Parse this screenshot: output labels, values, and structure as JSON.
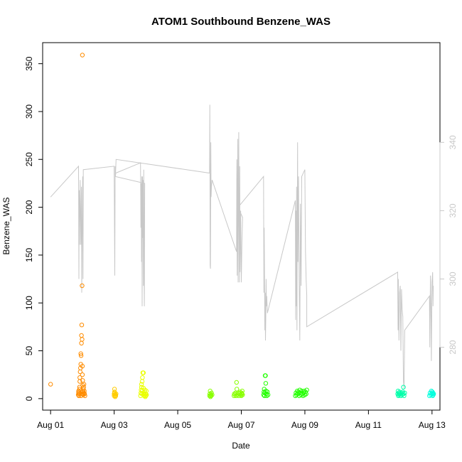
{
  "chart_data": {
    "type": "scatter",
    "title": "ATOM1 Southbound Benzene_WAS",
    "xlabel": "Date",
    "ylabel": "Benzene_WAS",
    "xlim": [
      -0.25,
      12.25
    ],
    "ylim": [
      -12,
      372
    ],
    "y2lim": [
      261.6,
      369.2
    ],
    "x_ticks": [
      {
        "x": 0,
        "label": "Aug 01"
      },
      {
        "x": 2,
        "label": "Aug 03"
      },
      {
        "x": 4,
        "label": "Aug 05"
      },
      {
        "x": 6,
        "label": "Aug 07"
      },
      {
        "x": 8,
        "label": "Aug 09"
      },
      {
        "x": 10,
        "label": "Aug 11"
      },
      {
        "x": 12,
        "label": "Aug 13"
      }
    ],
    "y_ticks": [
      0,
      50,
      100,
      150,
      200,
      250,
      300,
      350
    ],
    "y2_ticks": [
      280,
      300,
      320,
      340
    ],
    "point_series": [
      {
        "color": "#ff8c00",
        "points": [
          [
            0.0,
            15
          ],
          [
            0.87,
            4
          ],
          [
            0.88,
            6
          ],
          [
            0.88,
            8
          ],
          [
            0.89,
            3
          ],
          [
            0.9,
            5
          ],
          [
            0.9,
            7
          ],
          [
            0.91,
            10
          ],
          [
            0.91,
            12
          ],
          [
            0.92,
            18
          ],
          [
            0.92,
            22
          ],
          [
            0.93,
            28
          ],
          [
            0.94,
            32
          ],
          [
            0.95,
            36
          ],
          [
            0.96,
            45
          ],
          [
            0.97,
            58
          ],
          [
            0.97,
            66
          ],
          [
            0.98,
            77
          ],
          [
            0.99,
            118
          ],
          [
            0.95,
            47
          ],
          [
            0.99,
            62
          ],
          [
            1.0,
            34
          ],
          [
            1.0,
            25
          ],
          [
            1.01,
            14
          ],
          [
            1.01,
            19
          ],
          [
            1.02,
            8
          ],
          [
            1.02,
            5
          ],
          [
            1.03,
            10
          ],
          [
            1.03,
            4
          ],
          [
            1.04,
            6
          ],
          [
            0.96,
            3
          ],
          [
            0.98,
            5
          ],
          [
            1.0,
            7
          ],
          [
            1.04,
            12
          ],
          [
            1.05,
            15
          ],
          [
            1.06,
            8
          ],
          [
            1.07,
            5
          ],
          [
            1.08,
            3
          ],
          [
            1.0,
            359
          ]
        ]
      },
      {
        "color": "#ffcc00",
        "points": [
          [
            2.0,
            3
          ],
          [
            2.0,
            5
          ],
          [
            2.01,
            7
          ],
          [
            2.01,
            10
          ],
          [
            2.02,
            4
          ],
          [
            2.02,
            6
          ],
          [
            2.03,
            2
          ],
          [
            2.04,
            4
          ],
          [
            2.05,
            3
          ],
          [
            2.06,
            5
          ]
        ]
      },
      {
        "color": "#eaff00",
        "points": [
          [
            2.83,
            3
          ],
          [
            2.84,
            6
          ],
          [
            2.85,
            9
          ],
          [
            2.86,
            12
          ],
          [
            2.86,
            15
          ],
          [
            2.87,
            5
          ],
          [
            2.88,
            8
          ],
          [
            2.88,
            18
          ],
          [
            2.89,
            22
          ],
          [
            2.9,
            27
          ],
          [
            2.92,
            27
          ],
          [
            2.92,
            11
          ],
          [
            2.93,
            5
          ],
          [
            2.94,
            3
          ],
          [
            2.95,
            7
          ],
          [
            2.96,
            4
          ],
          [
            2.97,
            9
          ],
          [
            2.98,
            2
          ],
          [
            2.99,
            5
          ],
          [
            3.0,
            3
          ],
          [
            3.01,
            8
          ],
          [
            3.02,
            4
          ]
        ]
      },
      {
        "color": "#88ff00",
        "points": [
          [
            5.0,
            3
          ],
          [
            5.01,
            5
          ],
          [
            5.02,
            8
          ],
          [
            5.03,
            2
          ],
          [
            5.04,
            4
          ],
          [
            5.05,
            3
          ],
          [
            5.06,
            6
          ],
          [
            5.08,
            4
          ],
          [
            5.77,
            3
          ],
          [
            5.78,
            5
          ],
          [
            5.8,
            4
          ],
          [
            5.82,
            6
          ],
          [
            5.84,
            3
          ],
          [
            5.85,
            17
          ],
          [
            5.86,
            10
          ],
          [
            5.88,
            4
          ],
          [
            5.9,
            6
          ],
          [
            5.92,
            3
          ],
          [
            5.94,
            5
          ],
          [
            5.96,
            7
          ],
          [
            5.98,
            4
          ],
          [
            6.0,
            3
          ],
          [
            6.01,
            6
          ],
          [
            6.02,
            5
          ],
          [
            6.03,
            8
          ],
          [
            6.04,
            4
          ]
        ]
      },
      {
        "color": "#22ff00",
        "points": [
          [
            6.7,
            4
          ],
          [
            6.71,
            7
          ],
          [
            6.72,
            10
          ],
          [
            6.73,
            3
          ],
          [
            6.74,
            6
          ],
          [
            6.75,
            24
          ],
          [
            6.76,
            24
          ],
          [
            6.77,
            16
          ],
          [
            6.78,
            8
          ],
          [
            6.79,
            5
          ],
          [
            6.8,
            3
          ],
          [
            6.82,
            7
          ],
          [
            6.84,
            4
          ],
          [
            7.7,
            3
          ],
          [
            7.72,
            6
          ],
          [
            7.74,
            4
          ],
          [
            7.76,
            8
          ],
          [
            7.78,
            5
          ],
          [
            7.8,
            7
          ],
          [
            7.82,
            3
          ],
          [
            7.84,
            9
          ],
          [
            7.86,
            6
          ],
          [
            7.88,
            4
          ],
          [
            7.9,
            8
          ],
          [
            7.92,
            5
          ],
          [
            7.94,
            3
          ],
          [
            7.96,
            6
          ],
          [
            7.98,
            8
          ],
          [
            8.0,
            4
          ],
          [
            8.02,
            7
          ],
          [
            8.04,
            5
          ],
          [
            8.06,
            9
          ]
        ]
      },
      {
        "color": "#00ffaa",
        "points": [
          [
            10.92,
            5
          ],
          [
            10.93,
            8
          ],
          [
            10.94,
            3
          ],
          [
            10.95,
            6
          ],
          [
            10.96,
            4
          ],
          [
            10.98,
            7
          ],
          [
            11.0,
            5
          ],
          [
            11.02,
            3
          ],
          [
            11.04,
            6
          ],
          [
            11.06,
            4
          ],
          [
            11.08,
            7
          ],
          [
            11.1,
            5
          ],
          [
            11.12,
            3
          ],
          [
            11.14,
            6
          ],
          [
            11.1,
            12
          ]
        ]
      },
      {
        "color": "#00ffdd",
        "points": [
          [
            11.92,
            3
          ],
          [
            11.94,
            6
          ],
          [
            11.96,
            4
          ],
          [
            11.98,
            8
          ],
          [
            12.0,
            5
          ],
          [
            12.01,
            7
          ],
          [
            12.02,
            3
          ],
          [
            12.03,
            6
          ],
          [
            12.04,
            4
          ],
          [
            12.05,
            5
          ]
        ]
      }
    ],
    "line_series": {
      "color": "#c8c8c8",
      "axis": "right",
      "points": [
        [
          0.0,
          324
        ],
        [
          0.88,
          333
        ],
        [
          0.89,
          300
        ],
        [
          0.9,
          326
        ],
        [
          0.91,
          310
        ],
        [
          0.93,
          329
        ],
        [
          0.95,
          310
        ],
        [
          0.97,
          327
        ],
        [
          0.98,
          296
        ],
        [
          0.99,
          312
        ],
        [
          1.0,
          320
        ],
        [
          1.01,
          330
        ],
        [
          1.02,
          300
        ],
        [
          1.03,
          332
        ],
        [
          2.0,
          333
        ],
        [
          2.01,
          315
        ],
        [
          2.02,
          301
        ],
        [
          2.03,
          333
        ],
        [
          2.04,
          330
        ],
        [
          2.05,
          331
        ],
        [
          2.83,
          334
        ],
        [
          2.84,
          315
        ],
        [
          2.85,
          328
        ],
        [
          2.86,
          305
        ],
        [
          2.87,
          330
        ],
        [
          2.88,
          292
        ],
        [
          2.89,
          330
        ],
        [
          2.9,
          312
        ],
        [
          2.91,
          329
        ],
        [
          2.92,
          298
        ],
        [
          2.93,
          332
        ],
        [
          2.94,
          302
        ],
        [
          2.95,
          292
        ],
        [
          2.96,
          328
        ],
        [
          2.04,
          330
        ],
        [
          2.06,
          335
        ],
        [
          5.0,
          331
        ],
        [
          5.01,
          351
        ],
        [
          5.02,
          304
        ],
        [
          5.03,
          303
        ],
        [
          5.04,
          340
        ],
        [
          5.05,
          324
        ],
        [
          5.06,
          327
        ],
        [
          5.08,
          329
        ],
        [
          5.85,
          308
        ],
        [
          5.86,
          335
        ],
        [
          5.87,
          301
        ],
        [
          5.88,
          322
        ],
        [
          5.89,
          341
        ],
        [
          5.9,
          299
        ],
        [
          5.92,
          343
        ],
        [
          5.93,
          315
        ],
        [
          5.94,
          299
        ],
        [
          5.95,
          333
        ],
        [
          5.96,
          302
        ],
        [
          5.98,
          320
        ],
        [
          6.0,
          299
        ],
        [
          6.02,
          311
        ],
        [
          6.04,
          318
        ],
        [
          5.9,
          321
        ],
        [
          6.7,
          330
        ],
        [
          6.71,
          296
        ],
        [
          6.72,
          315
        ],
        [
          6.73,
          303
        ],
        [
          6.74,
          285
        ],
        [
          6.75,
          296
        ],
        [
          6.76,
          282
        ],
        [
          6.77,
          288
        ],
        [
          6.78,
          300
        ],
        [
          6.79,
          292
        ],
        [
          6.8,
          295
        ],
        [
          6.82,
          290
        ],
        [
          7.7,
          323
        ],
        [
          7.71,
          288
        ],
        [
          7.72,
          320
        ],
        [
          7.73,
          292
        ],
        [
          7.74,
          327
        ],
        [
          7.75,
          285
        ],
        [
          7.76,
          312
        ],
        [
          7.77,
          340
        ],
        [
          7.78,
          305
        ],
        [
          7.8,
          330
        ],
        [
          7.82,
          300
        ],
        [
          7.84,
          282
        ],
        [
          7.86,
          322
        ],
        [
          7.88,
          298
        ],
        [
          7.9,
          330
        ],
        [
          8.0,
          332
        ],
        [
          8.02,
          308
        ],
        [
          8.04,
          300
        ],
        [
          8.06,
          295
        ],
        [
          8.06,
          286
        ],
        [
          10.92,
          302
        ],
        [
          10.93,
          285
        ],
        [
          10.94,
          300
        ],
        [
          10.96,
          282
        ],
        [
          10.98,
          296
        ],
        [
          11.0,
          298
        ],
        [
          11.02,
          279
        ],
        [
          11.04,
          297
        ],
        [
          11.06,
          291
        ],
        [
          11.08,
          289
        ],
        [
          11.1,
          270
        ],
        [
          11.12,
          268
        ],
        [
          11.14,
          285
        ],
        [
          11.92,
          295
        ],
        [
          11.93,
          280
        ],
        [
          11.95,
          301
        ],
        [
          11.97,
          288
        ],
        [
          11.98,
          276
        ],
        [
          12.0,
          299
        ],
        [
          12.02,
          302
        ],
        [
          12.03,
          292
        ],
        [
          12.04,
          298
        ]
      ]
    }
  }
}
